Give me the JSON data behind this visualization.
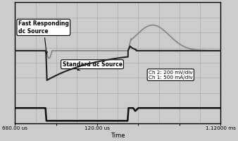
{
  "xlim": [
    0,
    10
  ],
  "ylim": [
    0,
    8
  ],
  "xlabel": "Time",
  "xtick_positions": [
    0,
    2,
    4,
    6,
    8,
    10
  ],
  "xtick_labels": [
    "680.00 us",
    "",
    "120.00 us",
    "",
    "",
    "1.12000 ms"
  ],
  "grid_color": "#aaaaaa",
  "bg_color": "#cccccc",
  "ch2_label": "Ch 2: 200 mV/div",
  "ch1_label": "Ch 1: 500 mA/div",
  "fast_label": "Fast Responding\ndc Source",
  "std_label": "Standard dc Source",
  "line_color_fast": "#888888",
  "line_color_std": "#222222",
  "line_color_current": "#111111",
  "step_x": 1.5,
  "step_off_x": 5.5
}
